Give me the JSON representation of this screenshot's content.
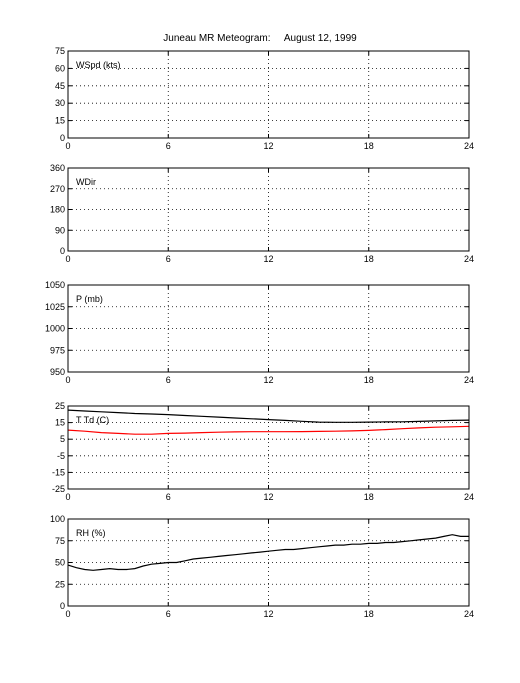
{
  "title": "Juneau MR Meteogram:     August 12, 1999",
  "chart_data": [
    {
      "type": "line",
      "ylabel": "WSpd (kts)",
      "xlim": [
        0,
        24
      ],
      "ylim": [
        0,
        75
      ],
      "xticks": [
        0,
        6,
        12,
        18,
        24
      ],
      "yticks": [
        0,
        15,
        30,
        45,
        60,
        75
      ],
      "grid": true,
      "series": []
    },
    {
      "type": "line",
      "ylabel": "WDir",
      "xlim": [
        0,
        24
      ],
      "ylim": [
        0,
        360
      ],
      "xticks": [
        0,
        6,
        12,
        18,
        24
      ],
      "yticks": [
        0,
        90,
        180,
        270,
        360
      ],
      "grid": true,
      "series": []
    },
    {
      "type": "line",
      "ylabel": "P (mb)",
      "xlim": [
        0,
        24
      ],
      "ylim": [
        950,
        1050
      ],
      "xticks": [
        0,
        6,
        12,
        18,
        24
      ],
      "yticks": [
        950,
        975,
        1000,
        1025,
        1050
      ],
      "grid": true,
      "series": []
    },
    {
      "type": "line",
      "ylabel": "T Td (C)",
      "xlim": [
        0,
        24
      ],
      "ylim": [
        -25,
        25
      ],
      "xticks": [
        0,
        6,
        12,
        18,
        24
      ],
      "yticks": [
        -25,
        -15,
        -5,
        5,
        15,
        25
      ],
      "grid": true,
      "series": [
        {
          "color": "#000000",
          "x": [
            0,
            1,
            2,
            3,
            4,
            5,
            6,
            7,
            8,
            9,
            10,
            11,
            12,
            13,
            14,
            15,
            16,
            17,
            18,
            19,
            20,
            21,
            22,
            23,
            24
          ],
          "values": [
            22.5,
            22,
            21.5,
            21,
            20.5,
            20.2,
            19.8,
            19.3,
            18.8,
            18.3,
            17.8,
            17.3,
            16.8,
            16.3,
            15.8,
            15.3,
            15.2,
            15.2,
            15.3,
            15.4,
            15.5,
            15.7,
            16,
            16.3,
            16.5
          ]
        },
        {
          "color": "#ff0000",
          "x": [
            0,
            1,
            2,
            3,
            4,
            5,
            6,
            7,
            8,
            9,
            10,
            11,
            12,
            13,
            14,
            15,
            16,
            17,
            18,
            19,
            20,
            21,
            22,
            23,
            24
          ],
          "values": [
            10.5,
            9.8,
            9,
            8.5,
            8,
            8,
            8.5,
            8.7,
            9,
            9.2,
            9.4,
            9.5,
            9.5,
            9.5,
            9.6,
            9.7,
            9.8,
            10,
            10.3,
            10.8,
            11.3,
            11.8,
            12.2,
            12.5,
            12.8
          ]
        }
      ]
    },
    {
      "type": "line",
      "ylabel": "RH (%)",
      "xlim": [
        0,
        24
      ],
      "ylim": [
        0,
        100
      ],
      "xticks": [
        0,
        6,
        12,
        18,
        24
      ],
      "yticks": [
        0,
        25,
        50,
        75,
        100
      ],
      "grid": true,
      "series": [
        {
          "color": "#000000",
          "x": [
            0,
            0.5,
            1,
            1.5,
            2,
            2.5,
            3,
            3.5,
            4,
            4.5,
            5,
            5.5,
            6,
            6.5,
            7,
            7.5,
            8,
            8.5,
            9,
            9.5,
            10,
            10.5,
            11,
            11.5,
            12,
            12.5,
            13,
            13.5,
            14,
            14.5,
            15,
            15.5,
            16,
            16.5,
            17,
            17.5,
            18,
            18.5,
            19,
            19.5,
            20,
            20.5,
            21,
            21.5,
            22,
            22.5,
            23,
            23.5,
            24
          ],
          "values": [
            47,
            44,
            42,
            41,
            42,
            43,
            42,
            42,
            43,
            46,
            48,
            49,
            50,
            50,
            52,
            54,
            55,
            56,
            57,
            58,
            59,
            60,
            61,
            62,
            63,
            64,
            65,
            65,
            66,
            67,
            68,
            69,
            70,
            70,
            71,
            71,
            72,
            72,
            73,
            73,
            74,
            75,
            76,
            77,
            78,
            80,
            82,
            80,
            80
          ]
        }
      ]
    }
  ]
}
